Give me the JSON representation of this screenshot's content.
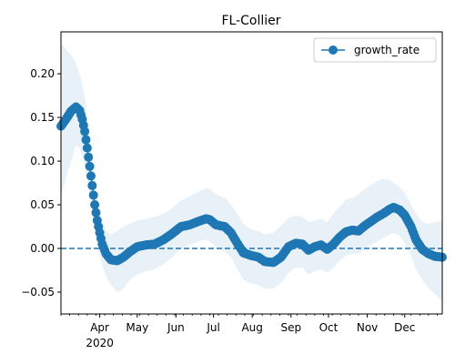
{
  "chart_data": {
    "type": "line",
    "title": "FL-Collier",
    "xlabel": "",
    "ylabel": "",
    "x_range": [
      "2020-03-01",
      "2020-12-31"
    ],
    "ylim": [
      -0.075,
      0.248
    ],
    "grid": false,
    "legend_placement": "top-right",
    "x_ticks": [
      {
        "date": "2020-04-01",
        "label": "Apr",
        "sublabel": "2020"
      },
      {
        "date": "2020-05-01",
        "label": "May"
      },
      {
        "date": "2020-06-01",
        "label": "Jun"
      },
      {
        "date": "2020-07-01",
        "label": "Jul"
      },
      {
        "date": "2020-08-01",
        "label": "Aug"
      },
      {
        "date": "2020-09-01",
        "label": "Sep"
      },
      {
        "date": "2020-10-01",
        "label": "Oct"
      },
      {
        "date": "2020-11-01",
        "label": "Nov"
      },
      {
        "date": "2020-12-01",
        "label": "Dec"
      }
    ],
    "y_ticks": [
      {
        "value": -0.05,
        "label": "−0.05"
      },
      {
        "value": 0.0,
        "label": "0.00"
      },
      {
        "value": 0.05,
        "label": "0.05"
      },
      {
        "value": 0.1,
        "label": "0.10"
      },
      {
        "value": 0.15,
        "label": "0.15"
      },
      {
        "value": 0.2,
        "label": "0.20"
      }
    ],
    "reference_line": {
      "y": 0.0,
      "style": "dashed",
      "color": "#1f77b4"
    },
    "series": [
      {
        "name": "growth_rate",
        "color": "#1f77b4",
        "marker": "circle",
        "points": [
          {
            "x": "2020-03-01",
            "y": 0.14,
            "lo": 0.06,
            "hi": 0.235
          },
          {
            "x": "2020-03-05",
            "y": 0.148,
            "lo": 0.08,
            "hi": 0.228
          },
          {
            "x": "2020-03-09",
            "y": 0.157,
            "lo": 0.1,
            "hi": 0.222
          },
          {
            "x": "2020-03-13",
            "y": 0.162,
            "lo": 0.118,
            "hi": 0.212
          },
          {
            "x": "2020-03-16",
            "y": 0.158,
            "lo": 0.115,
            "hi": 0.2
          },
          {
            "x": "2020-03-18",
            "y": 0.148,
            "lo": 0.106,
            "hi": 0.188
          },
          {
            "x": "2020-03-20",
            "y": 0.134,
            "lo": 0.094,
            "hi": 0.173
          },
          {
            "x": "2020-03-22",
            "y": 0.115,
            "lo": 0.078,
            "hi": 0.152
          },
          {
            "x": "2020-03-24",
            "y": 0.094,
            "lo": 0.06,
            "hi": 0.128
          },
          {
            "x": "2020-03-26",
            "y": 0.072,
            "lo": 0.042,
            "hi": 0.102
          },
          {
            "x": "2020-03-28",
            "y": 0.05,
            "lo": 0.022,
            "hi": 0.078
          },
          {
            "x": "2020-03-30",
            "y": 0.032,
            "lo": 0.005,
            "hi": 0.058
          },
          {
            "x": "2020-04-01",
            "y": 0.018,
            "lo": -0.008,
            "hi": 0.043
          },
          {
            "x": "2020-04-03",
            "y": 0.005,
            "lo": -0.02,
            "hi": 0.03
          },
          {
            "x": "2020-04-06",
            "y": -0.006,
            "lo": -0.032,
            "hi": 0.02
          },
          {
            "x": "2020-04-10",
            "y": -0.013,
            "lo": -0.042,
            "hi": 0.016
          },
          {
            "x": "2020-04-15",
            "y": -0.014,
            "lo": -0.05,
            "hi": 0.02
          },
          {
            "x": "2020-04-20",
            "y": -0.01,
            "lo": -0.046,
            "hi": 0.025
          },
          {
            "x": "2020-04-25",
            "y": -0.004,
            "lo": -0.036,
            "hi": 0.028
          },
          {
            "x": "2020-05-01",
            "y": 0.002,
            "lo": -0.03,
            "hi": 0.032
          },
          {
            "x": "2020-05-08",
            "y": 0.004,
            "lo": -0.026,
            "hi": 0.034
          },
          {
            "x": "2020-05-15",
            "y": 0.005,
            "lo": -0.024,
            "hi": 0.036
          },
          {
            "x": "2020-05-22",
            "y": 0.01,
            "lo": -0.018,
            "hi": 0.04
          },
          {
            "x": "2020-05-29",
            "y": 0.017,
            "lo": -0.01,
            "hi": 0.046
          },
          {
            "x": "2020-06-05",
            "y": 0.025,
            "lo": 0.0,
            "hi": 0.055
          },
          {
            "x": "2020-06-12",
            "y": 0.027,
            "lo": 0.004,
            "hi": 0.06
          },
          {
            "x": "2020-06-19",
            "y": 0.031,
            "lo": 0.008,
            "hi": 0.065
          },
          {
            "x": "2020-06-25",
            "y": 0.034,
            "lo": 0.01,
            "hi": 0.069
          },
          {
            "x": "2020-06-28",
            "y": 0.033,
            "lo": 0.008,
            "hi": 0.068
          },
          {
            "x": "2020-07-03",
            "y": 0.027,
            "lo": 0.002,
            "hi": 0.062
          },
          {
            "x": "2020-07-10",
            "y": 0.025,
            "lo": -0.004,
            "hi": 0.058
          },
          {
            "x": "2020-07-15",
            "y": 0.018,
            "lo": -0.01,
            "hi": 0.05
          },
          {
            "x": "2020-07-20",
            "y": 0.006,
            "lo": -0.024,
            "hi": 0.04
          },
          {
            "x": "2020-07-25",
            "y": -0.005,
            "lo": -0.036,
            "hi": 0.028
          },
          {
            "x": "2020-07-31",
            "y": -0.008,
            "lo": -0.04,
            "hi": 0.022
          },
          {
            "x": "2020-08-06",
            "y": -0.01,
            "lo": -0.042,
            "hi": 0.02
          },
          {
            "x": "2020-08-11",
            "y": -0.015,
            "lo": -0.046,
            "hi": 0.016
          },
          {
            "x": "2020-08-18",
            "y": -0.016,
            "lo": -0.046,
            "hi": 0.018
          },
          {
            "x": "2020-08-24",
            "y": -0.01,
            "lo": -0.04,
            "hi": 0.026
          },
          {
            "x": "2020-08-30",
            "y": 0.002,
            "lo": -0.028,
            "hi": 0.035
          },
          {
            "x": "2020-09-05",
            "y": 0.006,
            "lo": -0.022,
            "hi": 0.038
          },
          {
            "x": "2020-09-10",
            "y": 0.005,
            "lo": -0.022,
            "hi": 0.036
          },
          {
            "x": "2020-09-15",
            "y": -0.002,
            "lo": -0.03,
            "hi": 0.03
          },
          {
            "x": "2020-09-20",
            "y": 0.002,
            "lo": -0.026,
            "hi": 0.032
          },
          {
            "x": "2020-09-25",
            "y": 0.004,
            "lo": -0.024,
            "hi": 0.034
          },
          {
            "x": "2020-09-30",
            "y": -0.001,
            "lo": -0.028,
            "hi": 0.03
          },
          {
            "x": "2020-10-05",
            "y": 0.005,
            "lo": -0.022,
            "hi": 0.04
          },
          {
            "x": "2020-10-10",
            "y": 0.013,
            "lo": -0.014,
            "hi": 0.048
          },
          {
            "x": "2020-10-15",
            "y": 0.019,
            "lo": -0.008,
            "hi": 0.056
          },
          {
            "x": "2020-10-20",
            "y": 0.021,
            "lo": -0.006,
            "hi": 0.058
          },
          {
            "x": "2020-10-25",
            "y": 0.02,
            "lo": -0.006,
            "hi": 0.062
          },
          {
            "x": "2020-10-30",
            "y": 0.026,
            "lo": 0.0,
            "hi": 0.068
          },
          {
            "x": "2020-11-04",
            "y": 0.031,
            "lo": 0.004,
            "hi": 0.073
          },
          {
            "x": "2020-11-09",
            "y": 0.036,
            "lo": 0.008,
            "hi": 0.077
          },
          {
            "x": "2020-11-14",
            "y": 0.04,
            "lo": 0.012,
            "hi": 0.08
          },
          {
            "x": "2020-11-19",
            "y": 0.045,
            "lo": 0.016,
            "hi": 0.078
          },
          {
            "x": "2020-11-22",
            "y": 0.047,
            "lo": 0.018,
            "hi": 0.075
          },
          {
            "x": "2020-11-27",
            "y": 0.044,
            "lo": 0.014,
            "hi": 0.07
          },
          {
            "x": "2020-12-01",
            "y": 0.038,
            "lo": 0.006,
            "hi": 0.064
          },
          {
            "x": "2020-12-06",
            "y": 0.025,
            "lo": -0.008,
            "hi": 0.05
          },
          {
            "x": "2020-12-10",
            "y": 0.01,
            "lo": -0.024,
            "hi": 0.04
          },
          {
            "x": "2020-12-15",
            "y": -0.001,
            "lo": -0.036,
            "hi": 0.03
          },
          {
            "x": "2020-12-20",
            "y": -0.006,
            "lo": -0.046,
            "hi": 0.028
          },
          {
            "x": "2020-12-25",
            "y": -0.009,
            "lo": -0.052,
            "hi": 0.03
          },
          {
            "x": "2020-12-31",
            "y": -0.01,
            "lo": -0.06,
            "hi": 0.032
          }
        ]
      }
    ]
  }
}
